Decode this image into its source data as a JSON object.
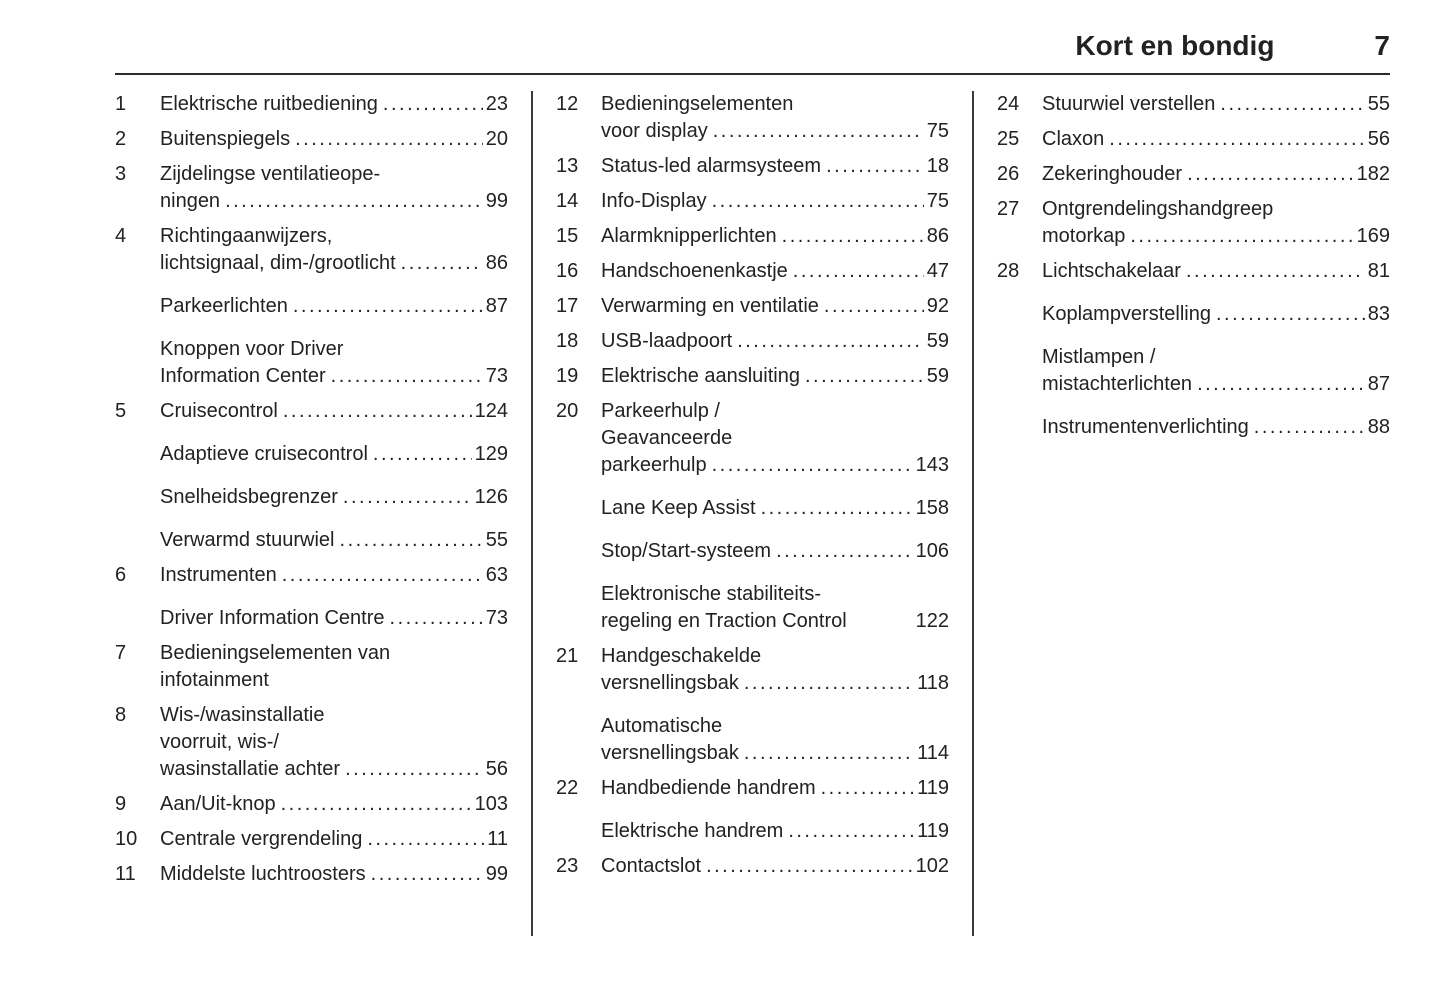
{
  "header": {
    "title": "Kort en bondig",
    "page_number": "7"
  },
  "leader": "......................................................................",
  "columns": [
    [
      {
        "num": "1",
        "lines": [
          "Elektrische ruitbediening"
        ],
        "page": "23"
      },
      {
        "num": "2",
        "lines": [
          "Buitenspiegels"
        ],
        "page": "20"
      },
      {
        "num": "3",
        "lines": [
          "Zijdelingse ventilatieope-",
          "ningen"
        ],
        "page": "99"
      },
      {
        "num": "4",
        "lines": [
          "Richtingaanwijzers,",
          "lichtsignaal, dim-/grootlicht"
        ],
        "page": "86"
      },
      {
        "num": "",
        "lines": [
          "Parkeerlichten"
        ],
        "page": "87"
      },
      {
        "num": "",
        "lines": [
          "Knoppen voor Driver",
          "Information Center"
        ],
        "page": "73"
      },
      {
        "num": "5",
        "lines": [
          "Cruisecontrol"
        ],
        "page": "124"
      },
      {
        "num": "",
        "lines": [
          "Adaptieve cruisecontrol"
        ],
        "page": "129"
      },
      {
        "num": "",
        "lines": [
          "Snelheidsbegrenzer"
        ],
        "page": "126"
      },
      {
        "num": "",
        "lines": [
          "Verwarmd stuurwiel"
        ],
        "page": "55"
      },
      {
        "num": "6",
        "lines": [
          "Instrumenten"
        ],
        "page": "63"
      },
      {
        "num": "",
        "lines": [
          "Driver Information Centre"
        ],
        "page": "73"
      },
      {
        "num": "7",
        "lines": [
          "Bedieningselementen van",
          "infotainment"
        ],
        "page": null
      },
      {
        "num": "8",
        "lines": [
          "Wis-/wasinstallatie",
          "voorruit, wis-/",
          "wasinstallatie achter"
        ],
        "page": "56"
      },
      {
        "num": "9",
        "lines": [
          "Aan/Uit-knop"
        ],
        "page": "103"
      },
      {
        "num": "10",
        "lines": [
          "Centrale vergrendeling"
        ],
        "page": "11"
      },
      {
        "num": "11",
        "lines": [
          "Middelste luchtroosters"
        ],
        "page": "99"
      }
    ],
    [
      {
        "num": "12",
        "lines": [
          "Bedieningselementen",
          "voor display"
        ],
        "page": "75"
      },
      {
        "num": "13",
        "lines": [
          "Status-led alarmsysteem"
        ],
        "page": "18"
      },
      {
        "num": "14",
        "lines": [
          "Info-Display"
        ],
        "page": "75"
      },
      {
        "num": "15",
        "lines": [
          "Alarmknipperlichten"
        ],
        "page": "86"
      },
      {
        "num": "16",
        "lines": [
          "Handschoenenkastje"
        ],
        "page": "47"
      },
      {
        "num": "17",
        "lines": [
          "Verwarming en ventilatie"
        ],
        "page": "92"
      },
      {
        "num": "18",
        "lines": [
          "USB-laadpoort"
        ],
        "page": "59"
      },
      {
        "num": "19",
        "lines": [
          "Elektrische aansluiting"
        ],
        "page": "59"
      },
      {
        "num": "20",
        "lines": [
          "Parkeerhulp /",
          "Geavanceerde",
          "parkeerhulp"
        ],
        "page": "143"
      },
      {
        "num": "",
        "lines": [
          "Lane Keep Assist"
        ],
        "page": "158"
      },
      {
        "num": "",
        "lines": [
          "Stop/Start-systeem"
        ],
        "page": "106"
      },
      {
        "num": "",
        "lines": [
          "Elektronische stabiliteits-",
          "regeling en Traction Control"
        ],
        "page": "122",
        "no_dots": true
      },
      {
        "num": "21",
        "lines": [
          "Handgeschakelde",
          "versnellingsbak"
        ],
        "page": "118"
      },
      {
        "num": "",
        "lines": [
          "Automatische",
          "versnellingsbak"
        ],
        "page": "114"
      },
      {
        "num": "22",
        "lines": [
          "Handbediende handrem"
        ],
        "page": "119"
      },
      {
        "num": "",
        "lines": [
          "Elektrische handrem"
        ],
        "page": "119"
      },
      {
        "num": "23",
        "lines": [
          "Contactslot"
        ],
        "page": "102"
      }
    ],
    [
      {
        "num": "24",
        "lines": [
          "Stuurwiel verstellen"
        ],
        "page": "55"
      },
      {
        "num": "25",
        "lines": [
          "Claxon"
        ],
        "page": "56"
      },
      {
        "num": "26",
        "lines": [
          "Zekeringhouder"
        ],
        "page": "182"
      },
      {
        "num": "27",
        "lines": [
          "Ontgrendelingshandgreep",
          "motorkap"
        ],
        "page": "169"
      },
      {
        "num": "28",
        "lines": [
          "Lichtschakelaar"
        ],
        "page": "81"
      },
      {
        "num": "",
        "lines": [
          "Koplampverstelling"
        ],
        "page": "83"
      },
      {
        "num": "",
        "lines": [
          "Mistlampen /",
          "mistachterlichten"
        ],
        "page": "87"
      },
      {
        "num": "",
        "lines": [
          "Instrumentenverlichting"
        ],
        "page": "88"
      }
    ]
  ]
}
